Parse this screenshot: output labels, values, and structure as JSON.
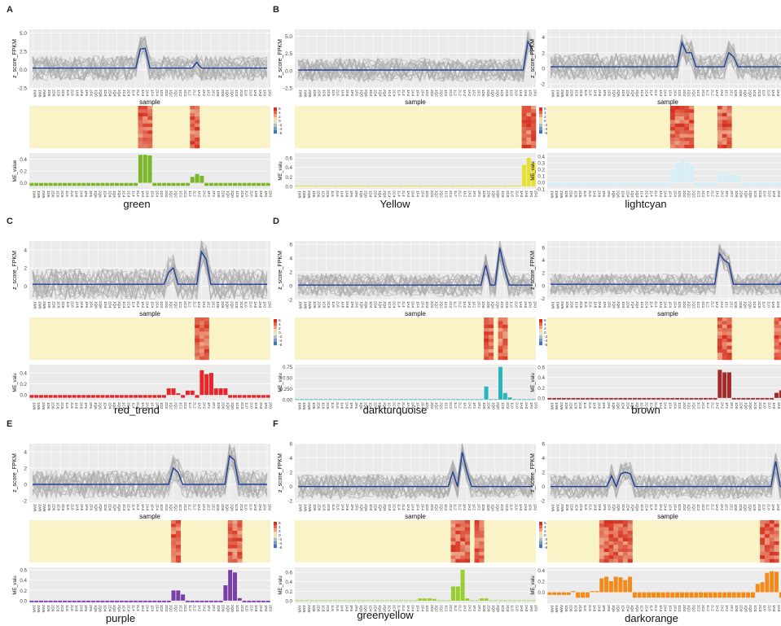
{
  "figure": {
    "panel_letters": [
      "A",
      "B",
      "C",
      "D",
      "E",
      "F"
    ],
    "samples": [
      "1W6",
      "1W6",
      "2W6",
      "1D6",
      "2D6",
      "1C6",
      "2C6",
      "1L6",
      "2L6",
      "1A6",
      "2A6",
      "1F6",
      "2F6",
      "1Q6",
      "2Q6",
      "1D4",
      "2D4",
      "1Q4",
      "2Q4",
      "1C4",
      "2C4",
      "1L4",
      "2L4",
      "1A4",
      "2A4",
      "1F4",
      "2F4",
      "1D2",
      "2D2",
      "1Q2",
      "2Q2",
      "1C2",
      "2C2",
      "1L2",
      "2L2",
      "1A2",
      "2A2",
      "1F2",
      "2F2",
      "1D0",
      "2D0",
      "1Q0",
      "2Q0",
      "1C0",
      "2C0",
      "1L0",
      "2L0",
      "1A0",
      "2A0",
      "1F0",
      "2F0"
    ],
    "labels": {
      "z_score": "z_score_FPKM",
      "sample": "sample",
      "me_value": "ME_value",
      "me_short": "ME_valu"
    },
    "heat_legend_ticks": [
      "6",
      "4",
      "2",
      "0",
      "-2",
      "-4",
      "-6"
    ],
    "heat_colors": {
      "low": "#4575b4",
      "mid": "#fbf5cf",
      "high": "#d7301f",
      "base": "#fbf3c8"
    },
    "line_color": "#1f3f99",
    "profile_color": "#aaaaaa"
  },
  "chart_data": [
    {
      "type": "line+heatmap+bar",
      "module": "green",
      "color": "#7cb62a",
      "line_yticks": [
        "5.0",
        "2.5",
        "0.0",
        "-2.5"
      ],
      "line_ylim": [
        -2.5,
        5.5
      ],
      "bar_yticks": [
        "0.4",
        "0.2",
        "0.0"
      ],
      "bar_ylim": [
        -0.1,
        0.5
      ],
      "line_peaks": [
        [
          23,
          2.8
        ],
        [
          24,
          2.9
        ],
        [
          35,
          1.0
        ]
      ],
      "line_base": 0.2,
      "bars": {
        "default": -0.05,
        "values": [
          [
            23,
            0.47
          ],
          [
            24,
            0.47
          ],
          [
            25,
            0.46
          ],
          [
            34,
            0.1
          ],
          [
            35,
            0.15
          ],
          [
            36,
            0.12
          ]
        ]
      },
      "heat_hot": [
        23,
        24,
        25,
        34,
        35
      ]
    },
    {
      "type": "line+heatmap+bar",
      "module": "Yellow",
      "color": "#e6e030",
      "line_yticks": [
        "5.0",
        "2.5",
        "0.0",
        "-2.5"
      ],
      "line_ylim": [
        -2.5,
        6
      ],
      "bar_yticks": [
        "0.6",
        "0.4",
        "0.2",
        "0.0"
      ],
      "bar_ylim": [
        -0.05,
        0.7
      ],
      "line_peaks": [
        [
          49,
          4.2
        ],
        [
          50,
          3.0
        ]
      ],
      "line_base": 0.1,
      "bars": {
        "default": 0.02,
        "values": [
          [
            48,
            0.45
          ],
          [
            49,
            0.6
          ],
          [
            50,
            0.5
          ]
        ]
      },
      "heat_hot": [
        48,
        49,
        50
      ]
    },
    {
      "type": "line+heatmap+bar",
      "module": "lightcyan",
      "color": "#d6eef6",
      "line_yticks": [
        "4",
        "2",
        "0",
        "-2"
      ],
      "line_ylim": [
        -2.5,
        5
      ],
      "bar_yticks": [
        "0.4",
        "0.3",
        "0.2",
        "0.1",
        "0.0",
        "-0.1"
      ],
      "bar_ylim": [
        -0.1,
        0.45
      ],
      "line_peaks": [
        [
          28,
          3.3
        ],
        [
          29,
          2.0
        ],
        [
          30,
          2.0
        ],
        [
          38,
          2.0
        ],
        [
          39,
          1.5
        ]
      ],
      "line_base": 0.2,
      "bars": {
        "default": -0.05,
        "values": [
          [
            26,
            0.2
          ],
          [
            27,
            0.3
          ],
          [
            28,
            0.35
          ],
          [
            29,
            0.3
          ],
          [
            30,
            0.25
          ],
          [
            36,
            0.15
          ],
          [
            37,
            0.15
          ],
          [
            38,
            0.12
          ],
          [
            39,
            0.12
          ],
          [
            40,
            0.1
          ]
        ]
      },
      "heat_hot": [
        26,
        27,
        28,
        29,
        30,
        36,
        37,
        38
      ]
    },
    {
      "type": "line+heatmap+bar",
      "module": "red_trend",
      "color": "#e8252a",
      "line_yticks": [
        "4",
        "2",
        "0"
      ],
      "line_ylim": [
        -1.5,
        5
      ],
      "bar_yticks": [
        "0.4",
        "0.2",
        "0.0"
      ],
      "bar_ylim": [
        -0.1,
        0.55
      ],
      "line_peaks": [
        [
          29,
          1.5
        ],
        [
          30,
          2.0
        ],
        [
          36,
          3.8
        ],
        [
          37,
          3.0
        ]
      ],
      "line_base": 0.2,
      "bars": {
        "default": -0.05,
        "values": [
          [
            29,
            0.12
          ],
          [
            30,
            0.12
          ],
          [
            31,
            0.03
          ],
          [
            33,
            0.08
          ],
          [
            34,
            0.08
          ],
          [
            36,
            0.45
          ],
          [
            37,
            0.38
          ],
          [
            38,
            0.4
          ],
          [
            39,
            0.12
          ],
          [
            40,
            0.12
          ],
          [
            41,
            0.12
          ]
        ]
      },
      "heat_hot": [
        35,
        36,
        37
      ]
    },
    {
      "type": "line+heatmap+bar",
      "module": "darkturquoise",
      "color": "#2ab5bc",
      "line_yticks": [
        "6",
        "4",
        "2",
        "0",
        "-2"
      ],
      "line_ylim": [
        -2,
        6.5
      ],
      "bar_yticks": [
        "0.75",
        "0.50",
        "0.250",
        "0.00"
      ],
      "bar_ylim": [
        -0.02,
        0.8
      ],
      "line_peaks": [
        [
          40,
          3.0
        ],
        [
          43,
          5.5
        ],
        [
          44,
          2.5
        ]
      ],
      "line_base": 0.1,
      "bars": {
        "default": 0.01,
        "values": [
          [
            40,
            0.3
          ],
          [
            43,
            0.75
          ],
          [
            44,
            0.15
          ],
          [
            45,
            0.05
          ]
        ]
      },
      "heat_hot": [
        40,
        41,
        43,
        44
      ]
    },
    {
      "type": "line+heatmap+bar",
      "module": "brown",
      "color": "#a52a2a",
      "line_yticks": [
        "6",
        "4",
        "2",
        "0",
        "-2"
      ],
      "line_ylim": [
        -2.2,
        7
      ],
      "bar_yticks": [
        "0.6",
        "0.4",
        "0.2",
        "0.0"
      ],
      "bar_ylim": [
        -0.05,
        0.65
      ],
      "line_peaks": [
        [
          36,
          5.0
        ],
        [
          37,
          4.0
        ],
        [
          38,
          3.5
        ],
        [
          50,
          2.0
        ]
      ],
      "line_base": 0.2,
      "bars": {
        "default": -0.03,
        "values": [
          [
            36,
            0.55
          ],
          [
            37,
            0.5
          ],
          [
            38,
            0.5
          ],
          [
            48,
            0.1
          ],
          [
            49,
            0.15
          ],
          [
            50,
            0.2
          ]
        ]
      },
      "heat_hot": [
        36,
        37,
        38,
        48,
        49
      ]
    },
    {
      "type": "line+heatmap+bar",
      "module": "purple",
      "color": "#7a3fa6",
      "line_yticks": [
        "4",
        "2",
        "0",
        "-2"
      ],
      "line_ylim": [
        -2.2,
        5
      ],
      "bar_yticks": [
        "0.6",
        "0.4",
        "0.2",
        "0.0"
      ],
      "bar_ylim": [
        -0.05,
        0.65
      ],
      "line_peaks": [
        [
          30,
          2.0
        ],
        [
          31,
          1.5
        ],
        [
          42,
          3.5
        ],
        [
          43,
          3.0
        ]
      ],
      "line_base": 0.0,
      "bars": {
        "default": -0.03,
        "values": [
          [
            30,
            0.2
          ],
          [
            31,
            0.2
          ],
          [
            32,
            0.12
          ],
          [
            41,
            0.3
          ],
          [
            42,
            0.6
          ],
          [
            43,
            0.55
          ],
          [
            44,
            0.05
          ]
        ]
      },
      "heat_hot": [
        30,
        31,
        42,
        43,
        44
      ]
    },
    {
      "type": "line+heatmap+bar",
      "module": "greenyellow",
      "color": "#9acd32",
      "line_yticks": [
        "6",
        "4",
        "2",
        "0",
        "-2"
      ],
      "line_ylim": [
        -2.2,
        6
      ],
      "bar_yticks": [
        "0.6",
        "0.4",
        "0.2",
        "0.0"
      ],
      "bar_ylim": [
        -0.05,
        0.7
      ],
      "line_peaks": [
        [
          33,
          2.0
        ],
        [
          35,
          4.8
        ],
        [
          36,
          2.0
        ]
      ],
      "line_base": 0.0,
      "bars": {
        "default": 0.01,
        "values": [
          [
            26,
            0.05
          ],
          [
            27,
            0.05
          ],
          [
            28,
            0.05
          ],
          [
            29,
            0.04
          ],
          [
            33,
            0.3
          ],
          [
            34,
            0.3
          ],
          [
            35,
            0.65
          ],
          [
            36,
            0.05
          ],
          [
            39,
            0.05
          ],
          [
            40,
            0.05
          ]
        ]
      },
      "heat_hot": [
        33,
        34,
        35,
        36,
        38,
        39
      ]
    },
    {
      "type": "line+heatmap+bar",
      "module": "darkorange",
      "color": "#f28a1c",
      "line_yticks": [
        "6",
        "4",
        "2",
        "0",
        "-2"
      ],
      "line_ylim": [
        -2.2,
        6
      ],
      "bar_yticks": [
        "0.4",
        "0.2",
        "0.0"
      ],
      "bar_ylim": [
        -0.2,
        0.45
      ],
      "line_peaks": [
        [
          13,
          1.5
        ],
        [
          15,
          1.8
        ],
        [
          16,
          2.0
        ],
        [
          17,
          1.8
        ],
        [
          48,
          3.5
        ]
      ],
      "line_base": 0.0,
      "bars": {
        "default": -0.1,
        "values": [
          [
            0,
            -0.05
          ],
          [
            1,
            -0.05
          ],
          [
            2,
            -0.05
          ],
          [
            3,
            -0.05
          ],
          [
            4,
            -0.05
          ],
          [
            5,
            0.02
          ],
          [
            9,
            0.02
          ],
          [
            10,
            0.02
          ],
          [
            11,
            0.25
          ],
          [
            12,
            0.28
          ],
          [
            13,
            0.2
          ],
          [
            14,
            0.28
          ],
          [
            15,
            0.27
          ],
          [
            16,
            0.22
          ],
          [
            17,
            0.28
          ],
          [
            44,
            0.15
          ],
          [
            45,
            0.18
          ],
          [
            46,
            0.35
          ],
          [
            47,
            0.38
          ],
          [
            48,
            0.37
          ]
        ]
      },
      "heat_hot": [
        11,
        12,
        13,
        14,
        15,
        16,
        17,
        45,
        46,
        47,
        48
      ]
    }
  ]
}
